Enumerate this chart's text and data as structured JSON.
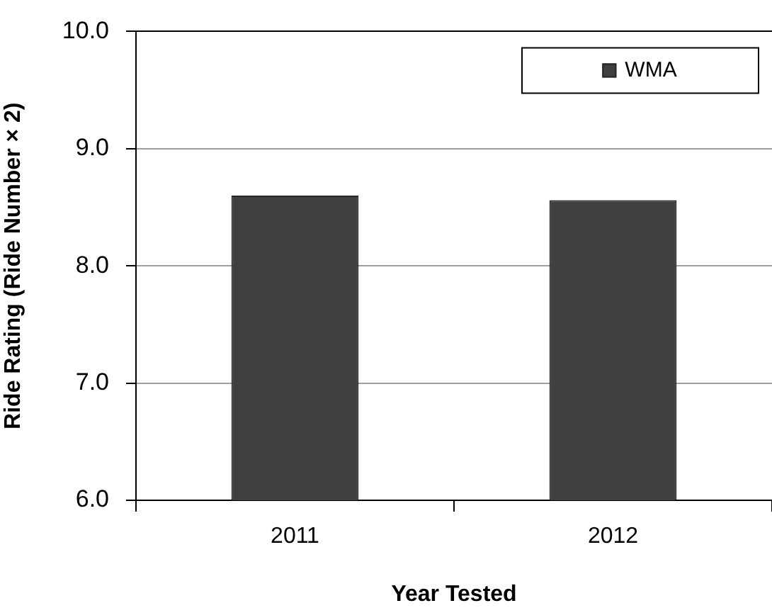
{
  "chart_data": {
    "type": "bar",
    "xlabel": "Year Tested",
    "ylabel": "Ride Rating (Ride Number × 2)",
    "categories": [
      "2011",
      "2012"
    ],
    "series": [
      {
        "name": "WMA",
        "color": "#404040",
        "values": [
          8.6,
          8.56
        ]
      }
    ],
    "ylim": [
      6,
      10
    ],
    "yticks": [
      {
        "value": 6,
        "label": "6.0"
      },
      {
        "value": 7,
        "label": "7.0"
      },
      {
        "value": 8,
        "label": "8.0"
      },
      {
        "value": 9,
        "label": "9.0"
      },
      {
        "value": 10,
        "label": "10.0"
      }
    ],
    "grid": "y",
    "legend": "top right"
  }
}
